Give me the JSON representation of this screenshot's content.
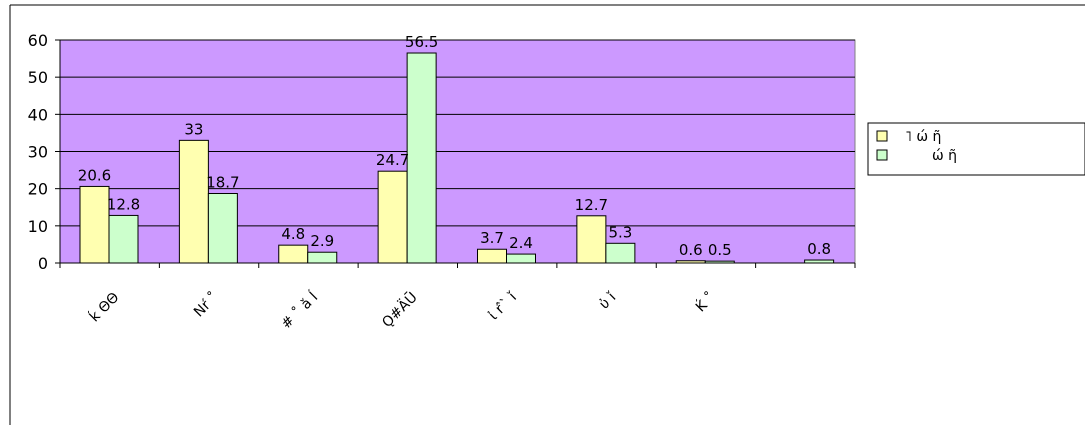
{
  "chart_data": {
    "type": "bar",
    "categories": [
      "ḱ ΘΘ",
      "Nŕ ˚",
      "#  ˚ ǎ ĺ",
      "Ǫ#ÄŪ",
      "ἰ ŕ ̀  ̀ ǐ",
      "ὐ ǐ",
      "Ḱ ˚",
      ""
    ],
    "series": [
      {
        "name": "˥  ώ ῆ",
        "color": "#FFFFB0",
        "values": [
          20.6,
          33,
          4.8,
          24.7,
          3.7,
          12.7,
          0.6,
          null
        ]
      },
      {
        "name": "ώ ῆ",
        "color": "#CCFFCC",
        "values": [
          12.8,
          18.7,
          2.9,
          56.5,
          2.4,
          5.3,
          0.5,
          0.8
        ]
      }
    ],
    "data_labels": {
      "s0": [
        "20.6",
        "33",
        "4.8",
        "24.7",
        "3.7",
        "12.7",
        "0.6",
        ""
      ],
      "s1": [
        "12.8",
        "18.7",
        "2.9",
        "56.5",
        "2.4",
        "5.3",
        "0.5",
        "0.8"
      ]
    },
    "yticks": [
      "0",
      "10",
      "20",
      "30",
      "40",
      "50",
      "60"
    ],
    "ylim": [
      0,
      60
    ],
    "plot_background": "#CC99FF",
    "gridlines": true,
    "legend_position": "right",
    "title": "",
    "xlabel": "",
    "ylabel": ""
  }
}
